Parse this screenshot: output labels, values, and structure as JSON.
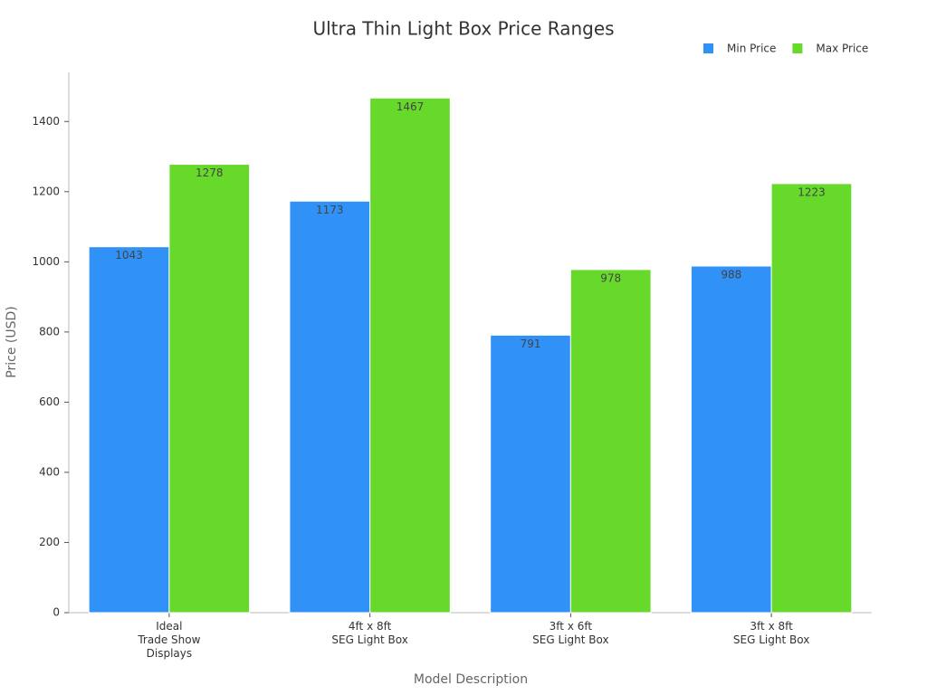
{
  "chart_data": {
    "type": "bar",
    "title": "Ultra Thin Light Box Price Ranges",
    "x_label": "Model Description",
    "y_label": "Price (USD)",
    "categories": [
      [
        "Ideal",
        "Trade Show",
        "Displays"
      ],
      [
        "4ft x 8ft",
        "SEG Light Box"
      ],
      [
        "3ft x 6ft",
        "SEG Light Box"
      ],
      [
        "3ft x 8ft",
        "SEG Light Box"
      ]
    ],
    "series": [
      {
        "name": "Min Price",
        "color": "#3091f7",
        "values": [
          1043,
          1173,
          791,
          988
        ]
      },
      {
        "name": "Max Price",
        "color": "#66d92a",
        "values": [
          1278,
          1467,
          978,
          1223
        ]
      }
    ],
    "ylim": [
      0,
      1540
    ],
    "yticks": [
      0,
      200,
      400,
      600,
      800,
      1000,
      1200,
      1400
    ],
    "grid": false,
    "legend": "top-right"
  }
}
